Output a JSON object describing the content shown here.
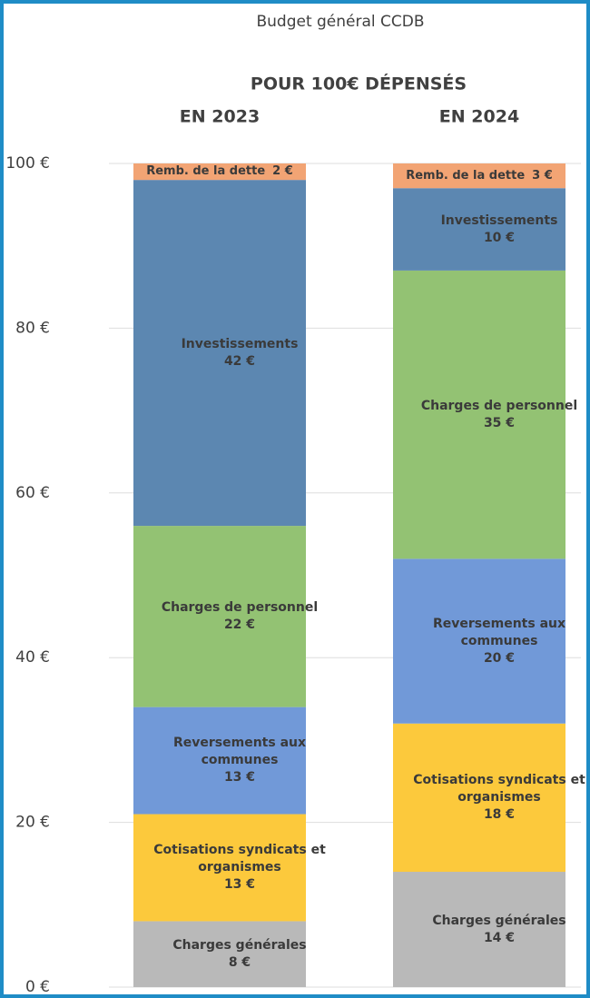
{
  "chart_data": {
    "type": "bar",
    "stacked": true,
    "title": "Budget général CCDB",
    "subtitle": "POUR 100€ DÉPENSÉS",
    "categories": [
      "EN 2023",
      "EN 2024"
    ],
    "series": [
      {
        "name": "Charges générales",
        "color": "#b9b9b9",
        "values": [
          8,
          14
        ],
        "value_labels": [
          "8 €",
          "14 €"
        ]
      },
      {
        "name": "Cotisations syndicats et organismes",
        "color": "#fcc93c",
        "values": [
          13,
          18
        ],
        "value_labels": [
          "13 €",
          "18 €"
        ]
      },
      {
        "name": "Reversements aux communes",
        "color": "#7199d8",
        "values": [
          13,
          20
        ],
        "value_labels": [
          "13 €",
          "20 €"
        ]
      },
      {
        "name": "Charges de personnel",
        "color": "#93c273",
        "values": [
          22,
          35
        ],
        "value_labels": [
          "22 €",
          "35 €"
        ]
      },
      {
        "name": "Investissements",
        "color": "#5c87b1",
        "values": [
          42,
          10
        ],
        "value_labels": [
          "42 €",
          "10 €"
        ]
      },
      {
        "name": "Remb. de la dette",
        "color": "#f2a474",
        "values": [
          2,
          3
        ],
        "value_labels": [
          "2 €",
          "3 €"
        ]
      }
    ],
    "ylim": [
      0,
      100
    ],
    "yticks": [
      {
        "value": 0,
        "label": "0 €"
      },
      {
        "value": 20,
        "label": "20 €"
      },
      {
        "value": 40,
        "label": "40 €"
      },
      {
        "value": 60,
        "label": "60 €"
      },
      {
        "value": 80,
        "label": "80 €"
      },
      {
        "value": 100,
        "label": "100 €"
      }
    ],
    "grid": true
  }
}
